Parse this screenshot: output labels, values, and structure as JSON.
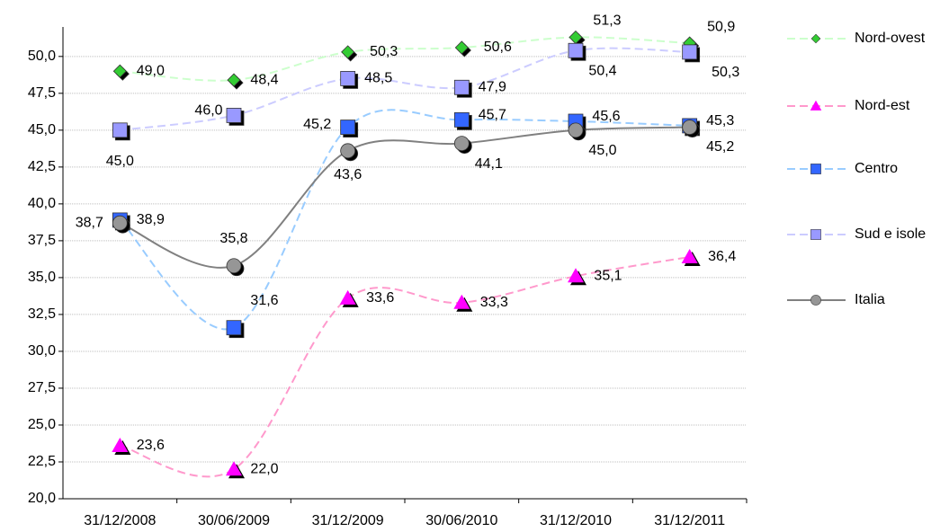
{
  "chart_data": {
    "type": "line",
    "categories": [
      "31/12/2008",
      "30/06/2009",
      "31/12/2009",
      "30/06/2010",
      "31/12/2010",
      "31/12/2011"
    ],
    "series": [
      {
        "name": "Nord-ovest",
        "color": "#ccffcc",
        "marker": "diamond",
        "marker_color": "#33cc33",
        "dashed": true,
        "values": [
          49.0,
          48.4,
          50.3,
          50.6,
          51.3,
          50.9
        ],
        "value_labels": [
          "49,0",
          "48,4",
          "50,3",
          "50,6",
          "51,3",
          "50,9"
        ]
      },
      {
        "name": "Nord-est",
        "color": "#ff99cc",
        "marker": "triangle",
        "marker_color": "#ff00ff",
        "dashed": true,
        "values": [
          23.6,
          22.0,
          33.6,
          33.3,
          35.1,
          36.4
        ],
        "value_labels": [
          "23,6",
          "22,0",
          "33,6",
          "33,3",
          "35,1",
          "36,4"
        ]
      },
      {
        "name": "Centro",
        "color": "#99ccff",
        "marker": "square",
        "marker_color": "#3366ff",
        "dashed": true,
        "values": [
          38.9,
          31.6,
          45.2,
          45.7,
          45.6,
          45.3
        ],
        "value_labels": [
          "38,9",
          "31,6",
          "45,2",
          "45,7",
          "45,6",
          "45,3"
        ]
      },
      {
        "name": "Sud e isole",
        "color": "#ccccff",
        "marker": "square",
        "marker_color": "#9999ff",
        "dashed": true,
        "values": [
          45.0,
          46.0,
          48.5,
          47.9,
          50.4,
          50.3
        ],
        "value_labels": [
          "45,0",
          "46,0",
          "48,5",
          "47,9",
          "50,4",
          "50,3"
        ]
      },
      {
        "name": "Italia",
        "color": "#808080",
        "marker": "circle",
        "marker_color": "#969696",
        "dashed": false,
        "values": [
          38.7,
          35.8,
          43.6,
          44.1,
          45.0,
          45.2
        ],
        "value_labels": [
          "38,7",
          "35,8",
          "43,6",
          "44,1",
          "45,0",
          "45,2"
        ]
      }
    ],
    "ylim": [
      20,
      52
    ],
    "yticks": [
      {
        "value": 20,
        "label": "20,0"
      },
      {
        "value": 22.5,
        "label": "22,5"
      },
      {
        "value": 25,
        "label": "25,0"
      },
      {
        "value": 27.5,
        "label": "27,5"
      },
      {
        "value": 30,
        "label": "30,0"
      },
      {
        "value": 32.5,
        "label": "32,5"
      },
      {
        "value": 35,
        "label": "35,0"
      },
      {
        "value": 37.5,
        "label": "37,5"
      },
      {
        "value": 40,
        "label": "40,0"
      },
      {
        "value": 42.5,
        "label": "42,5"
      },
      {
        "value": 45,
        "label": "45,0"
      },
      {
        "value": 47.5,
        "label": "47,5"
      },
      {
        "value": 50,
        "label": "50,0"
      }
    ],
    "grid": true,
    "legend": "right"
  }
}
